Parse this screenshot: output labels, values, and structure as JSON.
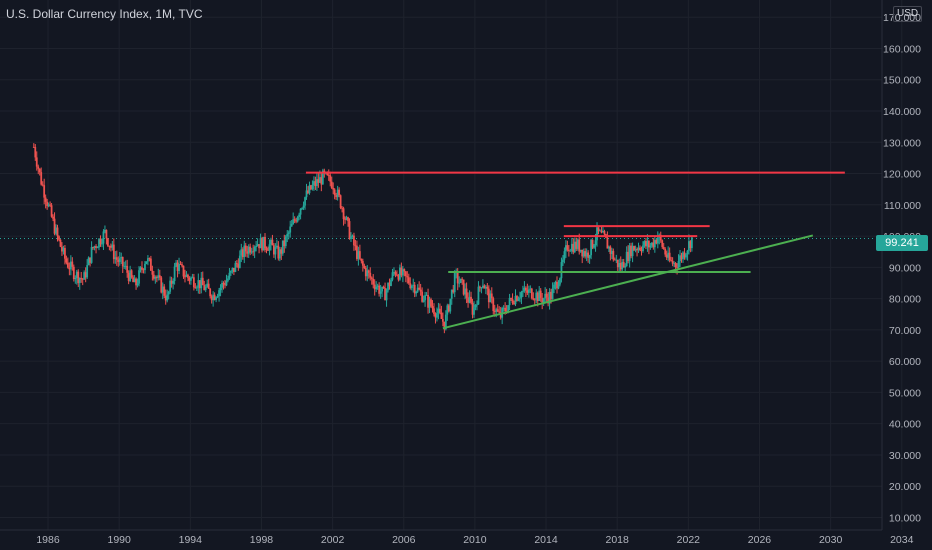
{
  "header": {
    "title": "U.S. Dollar Currency Index, 1M, TVC"
  },
  "chart_data": {
    "type": "candlestick",
    "currency": "USD",
    "last_price": "99.241",
    "xlim": [
      1983.3,
      2035.7
    ],
    "ylim": [
      6,
      175.5
    ],
    "x_ticks": [
      1986,
      1990,
      1994,
      1998,
      2002,
      2006,
      2010,
      2014,
      2018,
      2022,
      2026,
      2030,
      2034
    ],
    "y_ticks": [
      "10.000",
      "20.000",
      "30.000",
      "40.000",
      "50.000",
      "60.000",
      "70.000",
      "80.000",
      "90.000",
      "100.000",
      "110.000",
      "120.000",
      "130.000",
      "140.000",
      "150.000",
      "160.000",
      "170.000"
    ],
    "price_series": [
      [
        1985.2,
        128.5
      ],
      [
        1985.6,
        118
      ],
      [
        1986.0,
        110
      ],
      [
        1986.5,
        100
      ],
      [
        1987.0,
        92
      ],
      [
        1987.5,
        88
      ],
      [
        1988.0,
        86
      ],
      [
        1988.5,
        96
      ],
      [
        1989.2,
        101
      ],
      [
        1989.8,
        93
      ],
      [
        1990.3,
        90
      ],
      [
        1990.9,
        84
      ],
      [
        1991.5,
        93
      ],
      [
        1992.0,
        88
      ],
      [
        1992.7,
        80
      ],
      [
        1993.2,
        91
      ],
      [
        1993.8,
        87
      ],
      [
        1994.5,
        85
      ],
      [
        1995.3,
        81
      ],
      [
        1996.2,
        87
      ],
      [
        1997.0,
        95
      ],
      [
        1997.7,
        98
      ],
      [
        1998.5,
        97
      ],
      [
        1999.0,
        94
      ],
      [
        1999.7,
        103
      ],
      [
        2000.4,
        112
      ],
      [
        2000.9,
        116
      ],
      [
        2001.5,
        119
      ],
      [
        2002.0,
        117
      ],
      [
        2002.5,
        110
      ],
      [
        2003.0,
        100
      ],
      [
        2003.6,
        91
      ],
      [
        2004.2,
        86
      ],
      [
        2004.9,
        81
      ],
      [
        2005.5,
        89
      ],
      [
        2006.0,
        87
      ],
      [
        2006.6,
        84
      ],
      [
        2007.2,
        80
      ],
      [
        2007.8,
        76
      ],
      [
        2008.3,
        72
      ],
      [
        2008.9,
        87
      ],
      [
        2009.3,
        84
      ],
      [
        2009.9,
        76
      ],
      [
        2010.4,
        86
      ],
      [
        2010.9,
        79
      ],
      [
        2011.4,
        74
      ],
      [
        2012.1,
        80
      ],
      [
        2012.6,
        82
      ],
      [
        2013.2,
        82
      ],
      [
        2013.8,
        80
      ],
      [
        2014.3,
        81
      ],
      [
        2014.8,
        88
      ],
      [
        2015.2,
        97
      ],
      [
        2015.8,
        97
      ],
      [
        2016.3,
        94
      ],
      [
        2016.9,
        101
      ],
      [
        2017.3,
        99
      ],
      [
        2017.9,
        92
      ],
      [
        2018.2,
        90
      ],
      [
        2018.8,
        96
      ],
      [
        2019.4,
        97
      ],
      [
        2019.9,
        97
      ],
      [
        2020.3,
        100
      ],
      [
        2020.9,
        92
      ],
      [
        2021.3,
        91
      ],
      [
        2021.9,
        96
      ],
      [
        2022.2,
        99.2
      ]
    ],
    "support_resistance_lines": [
      {
        "color": "#f23645",
        "x1": 2000.5,
        "y1": 120.3,
        "x2": 2030.8,
        "y2": 120.3
      },
      {
        "color": "#f23645",
        "x1": 2015.0,
        "y1": 103.2,
        "x2": 2023.2,
        "y2": 103.2
      },
      {
        "color": "#f23645",
        "x1": 2015.0,
        "y1": 100.0,
        "x2": 2022.5,
        "y2": 100.0
      },
      {
        "color": "#4caf50",
        "x1": 2008.5,
        "y1": 88.5,
        "x2": 2025.5,
        "y2": 88.5
      },
      {
        "color": "#4caf50",
        "x1": 2008.2,
        "y1": 70.5,
        "x2": 2029.0,
        "y2": 100.2
      }
    ],
    "colors": {
      "up": "#26a69a",
      "down": "#ef5350",
      "grid": "#1e222d",
      "axis_text": "#b2b5be"
    }
  }
}
